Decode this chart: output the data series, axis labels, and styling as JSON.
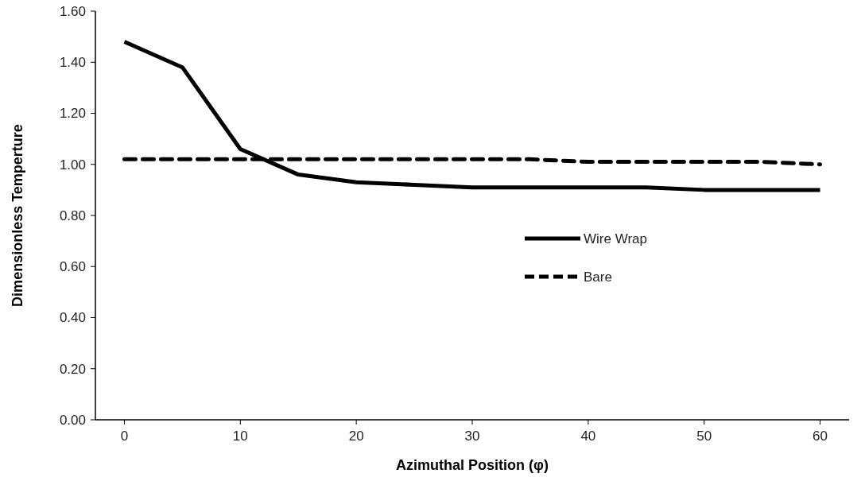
{
  "chart_data": {
    "type": "line",
    "xlabel": "Azimuthal Position (φ)",
    "ylabel": "Dimensionless Temperture",
    "x": [
      0,
      5,
      10,
      15,
      20,
      25,
      30,
      35,
      40,
      45,
      50,
      55,
      60
    ],
    "xlim": [
      -2.5,
      62.5
    ],
    "xticks": [
      0,
      10,
      20,
      30,
      40,
      50,
      60
    ],
    "ylim": [
      0,
      1.6
    ],
    "yticks": [
      {
        "value": 0,
        "label": "0.00"
      },
      {
        "value": 0.2,
        "label": "0.20"
      },
      {
        "value": 0.4,
        "label": "0.40"
      },
      {
        "value": 0.6,
        "label": "0.60"
      },
      {
        "value": 0.8,
        "label": "0.80"
      },
      {
        "value": 1,
        "label": "1.00"
      },
      {
        "value": 1.2,
        "label": "1.20"
      },
      {
        "value": 1.4,
        "label": "1.40"
      },
      {
        "value": 1.6,
        "label": "1.60"
      }
    ],
    "legend": "right",
    "grid": false,
    "marker": "none",
    "series": [
      {
        "name": "Wire Wrap",
        "color": "#000000",
        "line_style": "solid",
        "values": [
          1.48,
          1.38,
          1.06,
          0.96,
          0.93,
          0.92,
          0.91,
          0.91,
          0.91,
          0.91,
          0.9,
          0.9,
          0.9
        ]
      },
      {
        "name": "Bare",
        "color": "#000000",
        "line_style": "dashed",
        "values": [
          1.02,
          1.02,
          1.02,
          1.02,
          1.02,
          1.02,
          1.02,
          1.02,
          1.01,
          1.01,
          1.01,
          1.01,
          1.0
        ]
      }
    ]
  }
}
